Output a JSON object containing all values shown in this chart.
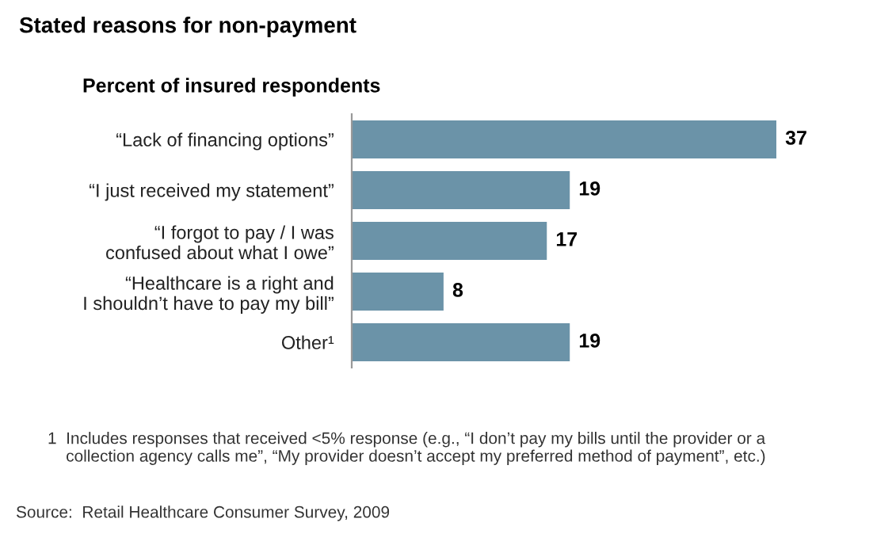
{
  "chart_data": {
    "type": "bar",
    "orientation": "horizontal",
    "title": "Stated reasons for non-payment",
    "subtitle": "Percent of insured respondents",
    "categories": [
      "“Lack of financing options”",
      "“I just received my statement”",
      "“I forgot to pay / I was\nconfused about what I owe”",
      "“Healthcare is a right and\nI shouldn’t have to pay my bill”",
      "Other¹"
    ],
    "values": [
      37,
      19,
      17,
      8,
      19
    ],
    "color": "#6b93a8",
    "data_labels": true,
    "grid": false,
    "legend": false,
    "annotations": [
      "1  Includes responses that received <5% response (e.g., “I don’t pay my bills until the provider or a\n    collection agency calls me”, “My provider doesn’t accept my preferred method of payment”, etc.)",
      "Source:  Retail Healthcare Consumer Survey, 2009"
    ]
  }
}
